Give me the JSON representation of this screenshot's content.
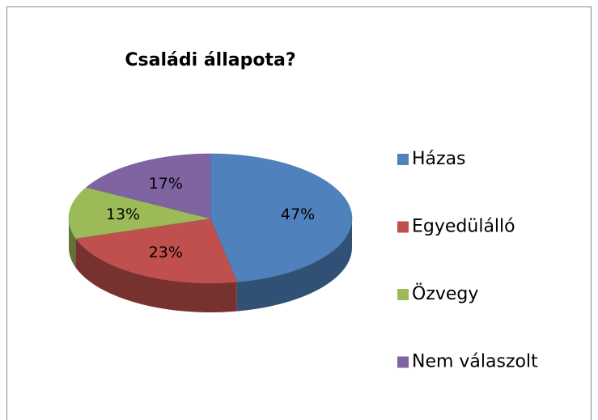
{
  "chart_data": {
    "type": "pie3d",
    "title": "Családi állapota?",
    "categories": [
      "Házas",
      "Egyedülálló",
      "Özvegy",
      "Nem válaszolt"
    ],
    "values": [
      47,
      23,
      13,
      17
    ],
    "value_labels": [
      "47%",
      "23%",
      "13%",
      "17%"
    ],
    "colors": [
      "#4f81bd",
      "#c0504d",
      "#9bbb59",
      "#8064a2"
    ],
    "legend": "right"
  }
}
